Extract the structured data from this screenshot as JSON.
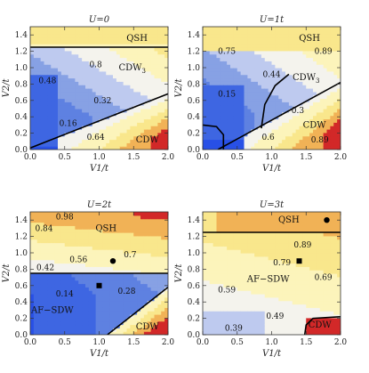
{
  "chart_data": [
    {
      "type": "heatmap",
      "title": "U=0",
      "xlabel": "V1/t",
      "ylabel": "V2/t",
      "xlim": [
        0,
        2
      ],
      "ylim": [
        0,
        1.5
      ],
      "xticks": [
        "0.0",
        "0.5",
        "1.0",
        "1.5",
        "2.0"
      ],
      "yticks": [
        "0.0",
        "0.2",
        "0.4",
        "0.6",
        "0.8",
        "1.0",
        "1.2",
        "1.4"
      ],
      "contour_labels": [
        {
          "text": "0.8",
          "x": 0.95,
          "y": 1.04
        },
        {
          "text": "0.48",
          "x": 0.25,
          "y": 0.84
        },
        {
          "text": "0.32",
          "x": 1.05,
          "y": 0.6
        },
        {
          "text": "0.16",
          "x": 0.55,
          "y": 0.32
        },
        {
          "text": "0.64",
          "x": 0.95,
          "y": 0.15
        }
      ],
      "region_labels": [
        {
          "text": "QSH",
          "x": 1.55,
          "y": 1.36
        },
        {
          "text": "CDW",
          "sub": "3",
          "x": 1.48,
          "y": 1.0
        },
        {
          "text": "CDW",
          "x": 1.7,
          "y": 0.12
        }
      ],
      "boundaries": [
        [
          [
            0.0,
            1.25
          ],
          [
            2.0,
            1.25
          ]
        ],
        [
          [
            0.0,
            0.02
          ],
          [
            2.0,
            0.68
          ]
        ]
      ],
      "markers": []
    },
    {
      "type": "heatmap",
      "title": "U=1t",
      "xlabel": "V1/t",
      "ylabel": "V2/t",
      "xlim": [
        0,
        2
      ],
      "ylim": [
        0,
        1.5
      ],
      "xticks": [
        "0.0",
        "0.5",
        "1.0",
        "1.5",
        "2.0"
      ],
      "yticks": [
        "0.0",
        "0.2",
        "0.4",
        "0.6",
        "0.8",
        "1.0",
        "1.2",
        "1.4"
      ],
      "contour_labels": [
        {
          "text": "0.75",
          "x": 0.35,
          "y": 1.2
        },
        {
          "text": "0.89",
          "x": 1.75,
          "y": 1.2
        },
        {
          "text": "0.44",
          "x": 1.0,
          "y": 0.92
        },
        {
          "text": "0.15",
          "x": 0.35,
          "y": 0.68
        },
        {
          "text": "0.3",
          "x": 1.38,
          "y": 0.48
        },
        {
          "text": "0.6",
          "x": 0.95,
          "y": 0.15
        },
        {
          "text": "0.89",
          "x": 1.7,
          "y": 0.12
        }
      ],
      "region_labels": [
        {
          "text": "QSH",
          "x": 1.55,
          "y": 1.36
        },
        {
          "text": "CDW",
          "sub": "3",
          "x": 1.5,
          "y": 0.88
        },
        {
          "text": "CDW",
          "x": 1.62,
          "y": 0.3
        }
      ],
      "boundaries": [
        [
          [
            0.22,
            0.0
          ],
          [
            2.0,
            0.82
          ]
        ],
        [
          [
            0.85,
            0.26
          ],
          [
            0.9,
            0.55
          ],
          [
            1.05,
            0.78
          ],
          [
            1.25,
            0.92
          ]
        ],
        [
          [
            0.0,
            0.3
          ],
          [
            0.2,
            0.28
          ],
          [
            0.3,
            0.18
          ],
          [
            0.3,
            0.0
          ]
        ]
      ],
      "markers": []
    },
    {
      "type": "heatmap",
      "title": "U=2t",
      "xlabel": "V1/t",
      "ylabel": "V2/t",
      "xlim": [
        0,
        2
      ],
      "ylim": [
        0,
        1.5
      ],
      "xticks": [
        "0.0",
        "0.5",
        "1.0",
        "1.5",
        "2.0"
      ],
      "yticks": [
        "0.0",
        "0.2",
        "0.4",
        "0.6",
        "0.8",
        "1.0",
        "1.2",
        "1.4"
      ],
      "contour_labels": [
        {
          "text": "0.98",
          "x": 0.5,
          "y": 1.44
        },
        {
          "text": "0.84",
          "x": 0.2,
          "y": 1.3
        },
        {
          "text": "0.7",
          "x": 1.45,
          "y": 0.98
        },
        {
          "text": "0.56",
          "x": 0.7,
          "y": 0.92
        },
        {
          "text": "0.42",
          "x": 0.22,
          "y": 0.82
        },
        {
          "text": "0.14",
          "x": 0.5,
          "y": 0.5
        },
        {
          "text": "0.28",
          "x": 1.4,
          "y": 0.53
        }
      ],
      "region_labels": [
        {
          "text": "QSH",
          "x": 1.1,
          "y": 1.3
        },
        {
          "text": "AF−SDW",
          "x": 0.32,
          "y": 0.3
        },
        {
          "text": "CDW",
          "x": 1.7,
          "y": 0.1
        }
      ],
      "boundaries": [
        [
          [
            0.0,
            0.75
          ],
          [
            2.0,
            0.75
          ]
        ],
        [
          [
            1.12,
            0.0
          ],
          [
            2.0,
            0.58
          ]
        ]
      ],
      "markers": [
        {
          "shape": "circle",
          "x": 1.2,
          "y": 0.9
        },
        {
          "shape": "square",
          "x": 1.0,
          "y": 0.6
        }
      ]
    },
    {
      "type": "heatmap",
      "title": "U=3t",
      "xlabel": "V1/t",
      "ylabel": "V2/t",
      "xlim": [
        0,
        2
      ],
      "ylim": [
        0,
        1.5
      ],
      "xticks": [
        "0.0",
        "0.5",
        "1.0",
        "1.5",
        "2.0"
      ],
      "yticks": [
        "0.0",
        "0.2",
        "0.4",
        "0.6",
        "0.8",
        "1.0",
        "1.2",
        "1.4"
      ],
      "contour_labels": [
        {
          "text": "0.89",
          "x": 1.45,
          "y": 1.1
        },
        {
          "text": "0.79",
          "x": 1.15,
          "y": 0.88
        },
        {
          "text": "0.69",
          "x": 1.75,
          "y": 0.7
        },
        {
          "text": "0.59",
          "x": 0.35,
          "y": 0.55
        },
        {
          "text": "0.49",
          "x": 1.05,
          "y": 0.23
        },
        {
          "text": "0.39",
          "x": 0.45,
          "y": 0.08
        }
      ],
      "region_labels": [
        {
          "text": "QSH",
          "x": 1.25,
          "y": 1.4
        },
        {
          "text": "AF−SDW",
          "x": 0.95,
          "y": 0.68
        },
        {
          "text": "CDW",
          "x": 1.7,
          "y": 0.12
        }
      ],
      "boundaries": [
        [
          [
            0.0,
            1.25
          ],
          [
            2.0,
            1.25
          ]
        ],
        [
          [
            1.48,
            0.0
          ],
          [
            1.5,
            0.12
          ],
          [
            1.6,
            0.2
          ],
          [
            2.0,
            0.22
          ]
        ]
      ],
      "markers": [
        {
          "shape": "circle",
          "x": 1.8,
          "y": 1.4
        },
        {
          "shape": "square",
          "x": 1.4,
          "y": 0.9
        }
      ]
    }
  ]
}
